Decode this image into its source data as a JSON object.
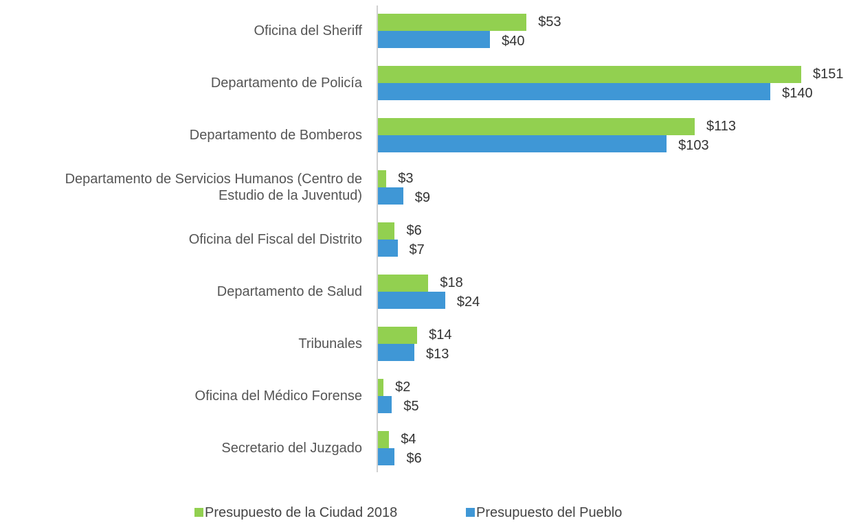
{
  "chart_data": {
    "type": "bar",
    "orientation": "horizontal",
    "categories": [
      "Oficina del Sheriff",
      "Departamento de Policía",
      "Departamento de Bomberos",
      "Departamento de Servicios Humanos (Centro de Estudio de la Juventud)",
      "Oficina del Fiscal del Distrito",
      "Departamento de Salud",
      "Tribunales",
      "Oficina del Médico Forense",
      "Secretario del Juzgado"
    ],
    "series": [
      {
        "name": "Presupuesto de la Ciudad 2018",
        "color": "#92d050",
        "values": [
          53,
          151,
          113,
          3,
          6,
          18,
          14,
          2,
          4
        ],
        "value_labels": [
          "$53",
          "$151",
          "$113",
          "$3",
          "$6",
          "$18",
          "$14",
          "$2",
          "$4"
        ]
      },
      {
        "name": "Presupuesto del Pueblo",
        "color": "#3f97d6",
        "values": [
          40,
          140,
          103,
          9,
          7,
          24,
          13,
          5,
          6
        ],
        "value_labels": [
          "$40",
          "$140",
          "$103",
          "$9",
          "$7",
          "$24",
          "$13",
          "$5",
          "$6"
        ]
      }
    ],
    "legend": "bottom"
  }
}
